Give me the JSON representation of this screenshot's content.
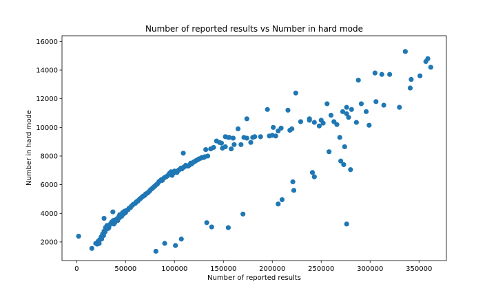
{
  "chart_data": {
    "type": "scatter",
    "title": "Number of reported results vs Number in hard mode",
    "xlabel": "Number of  reported results",
    "ylabel": "Number in hard mode",
    "xlim": [
      -15000,
      378000
    ],
    "ylim": [
      700,
      16400
    ],
    "xticks": [
      0,
      50000,
      100000,
      150000,
      200000,
      250000,
      300000,
      350000
    ],
    "yticks": [
      2000,
      4000,
      6000,
      8000,
      10000,
      12000,
      14000,
      16000
    ],
    "grid": false,
    "legend": "none",
    "marker_color": "#1f77b4",
    "points": [
      [
        2000,
        2400
      ],
      [
        15500,
        1550
      ],
      [
        19500,
        1900
      ],
      [
        21000,
        1850
      ],
      [
        22000,
        2050
      ],
      [
        23500,
        2150
      ],
      [
        25000,
        2350
      ],
      [
        26500,
        2550
      ],
      [
        28000,
        2750
      ],
      [
        29500,
        3000
      ],
      [
        31000,
        3150
      ],
      [
        33000,
        3050
      ],
      [
        34500,
        3250
      ],
      [
        36000,
        3400
      ],
      [
        37500,
        3500
      ],
      [
        39000,
        3350
      ],
      [
        41000,
        3600
      ],
      [
        43000,
        3750
      ],
      [
        45000,
        3850
      ],
      [
        47000,
        4050
      ],
      [
        49000,
        4150
      ],
      [
        51000,
        4200
      ],
      [
        53500,
        4350
      ],
      [
        56000,
        4500
      ],
      [
        58500,
        4650
      ],
      [
        61000,
        4800
      ],
      [
        63000,
        4900
      ],
      [
        65500,
        5050
      ],
      [
        68000,
        5200
      ],
      [
        70500,
        5350
      ],
      [
        73000,
        5450
      ],
      [
        75000,
        5600
      ],
      [
        77500,
        5750
      ],
      [
        80000,
        5900
      ],
      [
        82500,
        6050
      ],
      [
        85000,
        6250
      ],
      [
        87500,
        6300
      ],
      [
        90000,
        6500
      ],
      [
        92500,
        6600
      ],
      [
        95000,
        6800
      ],
      [
        97500,
        6650
      ],
      [
        100000,
        6950
      ],
      [
        102500,
        6850
      ],
      [
        105000,
        7050
      ],
      [
        107500,
        7100
      ],
      [
        110000,
        7250
      ],
      [
        112500,
        7300
      ],
      [
        115000,
        7350
      ],
      [
        117500,
        7450
      ],
      [
        120000,
        7600
      ],
      [
        122500,
        7700
      ],
      [
        125000,
        7800
      ],
      [
        128000,
        7900
      ],
      [
        131000,
        7950
      ],
      [
        134000,
        8000
      ],
      [
        137000,
        8500
      ],
      [
        140000,
        8600
      ],
      [
        143000,
        9050
      ],
      [
        146000,
        8950
      ],
      [
        149000,
        8550
      ],
      [
        152000,
        8650
      ],
      [
        155000,
        9300
      ],
      [
        158000,
        8500
      ],
      [
        161000,
        8800
      ],
      [
        165000,
        9900
      ],
      [
        168000,
        8800
      ],
      [
        171000,
        9300
      ],
      [
        174000,
        9250
      ],
      [
        178000,
        8950
      ],
      [
        182000,
        9350
      ],
      [
        188000,
        9350
      ],
      [
        195000,
        11250
      ],
      [
        197000,
        9400
      ],
      [
        201000,
        10000
      ],
      [
        203500,
        9400
      ],
      [
        206000,
        9750
      ],
      [
        209000,
        9950
      ],
      [
        216000,
        11200
      ],
      [
        220000,
        9900
      ],
      [
        224000,
        12400
      ],
      [
        229000,
        10400
      ],
      [
        238000,
        10500
      ],
      [
        243000,
        10350
      ],
      [
        248000,
        10100
      ],
      [
        252000,
        10300
      ],
      [
        256000,
        11650
      ],
      [
        260000,
        10850
      ],
      [
        263000,
        10400
      ],
      [
        266000,
        10200
      ],
      [
        269000,
        9300
      ],
      [
        272000,
        11100
      ],
      [
        274000,
        8650
      ],
      [
        276000,
        11400
      ],
      [
        278000,
        10700
      ],
      [
        281000,
        11250
      ],
      [
        286000,
        10350
      ],
      [
        288000,
        13300
      ],
      [
        291000,
        11650
      ],
      [
        296000,
        11100
      ],
      [
        299000,
        10150
      ],
      [
        305000,
        13800
      ],
      [
        306000,
        11800
      ],
      [
        312000,
        13700
      ],
      [
        314000,
        11550
      ],
      [
        320000,
        13700
      ],
      [
        330000,
        11400
      ],
      [
        336000,
        15300
      ],
      [
        341000,
        12750
      ],
      [
        342000,
        13350
      ],
      [
        351000,
        13600
      ],
      [
        357000,
        14600
      ],
      [
        359000,
        14800
      ],
      [
        362000,
        14200
      ],
      [
        23000,
        1900
      ],
      [
        25500,
        2200
      ],
      [
        27500,
        2450
      ],
      [
        29000,
        2700
      ],
      [
        30500,
        2900
      ],
      [
        32500,
        2950
      ],
      [
        35000,
        3300
      ],
      [
        38000,
        3250
      ],
      [
        40000,
        3550
      ],
      [
        42000,
        3500
      ],
      [
        44000,
        3700
      ],
      [
        46000,
        3800
      ],
      [
        48000,
        3950
      ],
      [
        50000,
        4050
      ],
      [
        52500,
        4250
      ],
      [
        55000,
        4400
      ],
      [
        57500,
        4600
      ],
      [
        60000,
        4700
      ],
      [
        62500,
        4850
      ],
      [
        64500,
        5000
      ],
      [
        67000,
        5150
      ],
      [
        69500,
        5250
      ],
      [
        72000,
        5400
      ],
      [
        74500,
        5550
      ],
      [
        76500,
        5700
      ],
      [
        79000,
        5850
      ],
      [
        81500,
        6000
      ],
      [
        84000,
        6200
      ],
      [
        86500,
        6350
      ],
      [
        89000,
        6450
      ],
      [
        91500,
        6550
      ],
      [
        94000,
        6700
      ],
      [
        96500,
        6900
      ],
      [
        99000,
        6800
      ],
      [
        101500,
        6900
      ],
      [
        104000,
        7000
      ],
      [
        106500,
        7150
      ],
      [
        109000,
        7200
      ],
      [
        111500,
        7350
      ],
      [
        114000,
        7300
      ],
      [
        116500,
        7500
      ],
      [
        119000,
        7550
      ],
      [
        121500,
        7650
      ],
      [
        124000,
        7750
      ],
      [
        127000,
        7850
      ],
      [
        130000,
        7900
      ],
      [
        28000,
        3650
      ],
      [
        37000,
        4100
      ],
      [
        44000,
        3900
      ],
      [
        48500,
        4050
      ],
      [
        109000,
        8200
      ],
      [
        132000,
        8450
      ],
      [
        148000,
        8900
      ],
      [
        152000,
        9350
      ],
      [
        156000,
        9300
      ],
      [
        160000,
        9250
      ],
      [
        174000,
        10600
      ],
      [
        180000,
        9300
      ],
      [
        200000,
        9450
      ],
      [
        218000,
        9800
      ],
      [
        238000,
        10600
      ],
      [
        250000,
        10500
      ],
      [
        276000,
        10950
      ],
      [
        81000,
        1350
      ],
      [
        90000,
        1900
      ],
      [
        101000,
        1750
      ],
      [
        107000,
        2200
      ],
      [
        133000,
        3350
      ],
      [
        138000,
        3050
      ],
      [
        155000,
        3000
      ],
      [
        170000,
        3950
      ],
      [
        206000,
        4650
      ],
      [
        210000,
        4950
      ],
      [
        221000,
        6200
      ],
      [
        222000,
        5600
      ],
      [
        241000,
        6850
      ],
      [
        243000,
        6550
      ],
      [
        258000,
        8300
      ],
      [
        270000,
        7650
      ],
      [
        273000,
        7400
      ],
      [
        276000,
        3250
      ],
      [
        280000,
        7050
      ]
    ]
  }
}
